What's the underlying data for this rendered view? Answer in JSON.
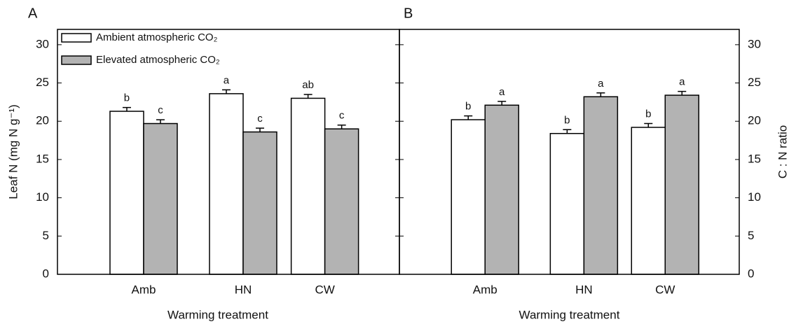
{
  "chart_data": [
    {
      "type": "bar",
      "panel_label": "A",
      "y_label": "Leaf N (mg N g⁻¹)",
      "x_label": "Warming treatment",
      "categories": [
        "Amb",
        "HN",
        "CW"
      ],
      "series": [
        {
          "name": "Ambient atmospheric CO₂",
          "color": "#ffffff",
          "values": [
            21.3,
            23.6,
            23.0
          ],
          "errors": [
            0.5,
            0.5,
            0.5
          ],
          "letters": [
            "b",
            "a",
            "ab"
          ]
        },
        {
          "name": "Elevated atmospheric CO₂",
          "color": "#b3b3b3",
          "values": [
            19.7,
            18.6,
            19.0
          ],
          "errors": [
            0.5,
            0.5,
            0.5
          ],
          "letters": [
            "c",
            "c",
            "c"
          ]
        }
      ],
      "ylim": [
        0,
        32
      ],
      "yticks": [
        0,
        5,
        10,
        15,
        20,
        25,
        30
      ],
      "y_axis_side": "left"
    },
    {
      "type": "bar",
      "panel_label": "B",
      "y_label": "C : N ratio",
      "x_label": "Warming treatment",
      "categories": [
        "Amb",
        "HN",
        "CW"
      ],
      "series": [
        {
          "color": "#ffffff",
          "values": [
            20.2,
            18.4,
            19.2
          ],
          "errors": [
            0.5,
            0.5,
            0.5
          ],
          "letters": [
            "b",
            "b",
            "b"
          ]
        },
        {
          "color": "#b3b3b3",
          "values": [
            22.1,
            23.2,
            23.4
          ],
          "errors": [
            0.5,
            0.5,
            0.5
          ],
          "letters": [
            "a",
            "a",
            "a"
          ]
        }
      ],
      "ylim": [
        0,
        32
      ],
      "yticks": [
        0,
        5,
        10,
        15,
        20,
        25,
        30
      ],
      "y_axis_side": "right"
    }
  ]
}
